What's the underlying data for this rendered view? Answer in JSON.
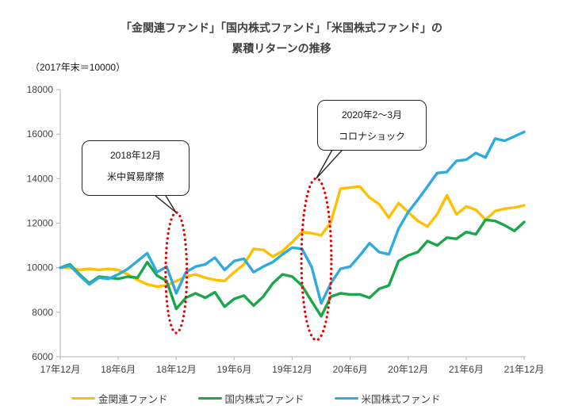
{
  "title": {
    "line1": "「金関連ファンド」「国内株式ファンド」「米国株式ファンド」の",
    "line2": "累積リターンの推移"
  },
  "axis_note": "（2017年末＝10000）",
  "annotations": [
    {
      "id": "trade-friction",
      "line1": "2018年12月",
      "line2": "米中貿易摩擦"
    },
    {
      "id": "corona-shock",
      "line1": "2020年2～3月",
      "line2": "コロナショック"
    }
  ],
  "colors": {
    "gold": "#FFC000",
    "domestic": "#1aa74a",
    "us": "#2faade",
    "highlight": "#e60000",
    "axis": "#bfbfbf",
    "label": "#3f3f3f"
  },
  "chart_data": {
    "type": "line",
    "title": "「金関連ファンド」「国内株式ファンド」「米国株式ファンド」の累積リターンの推移",
    "subtitle": "（2017年末＝10000）",
    "ylabel": "",
    "xlabel": "",
    "ylim": [
      6000,
      18000
    ],
    "ytick_step": 2000,
    "grid": false,
    "legend_position": "bottom",
    "x_tick_labels": [
      "17年12月",
      "18年6月",
      "18年12月",
      "19年6月",
      "19年12月",
      "20年6月",
      "20年12月",
      "21年6月",
      "21年12月"
    ],
    "categories": [
      "17年12月",
      "18年1月",
      "18年2月",
      "18年3月",
      "18年4月",
      "18年5月",
      "18年6月",
      "18年7月",
      "18年8月",
      "18年9月",
      "18年10月",
      "18年11月",
      "18年12月",
      "19年1月",
      "19年2月",
      "19年3月",
      "19年4月",
      "19年5月",
      "19年6月",
      "19年7月",
      "19年8月",
      "19年9月",
      "19年10月",
      "19年11月",
      "19年12月",
      "20年1月",
      "20年2月",
      "20年3月",
      "20年4月",
      "20年5月",
      "20年6月",
      "20年7月",
      "20年8月",
      "20年9月",
      "20年10月",
      "20年11月",
      "20年12月",
      "21年1月",
      "21年2月",
      "21年3月",
      "21年4月",
      "21年5月",
      "21年6月",
      "21年7月",
      "21年8月",
      "21年9月",
      "21年10月",
      "21年11月",
      "21年12月"
    ],
    "series": [
      {
        "name": "金関連ファンド",
        "color": "#FFC000",
        "values": [
          10000,
          10000,
          9900,
          9950,
          9900,
          9950,
          9900,
          9700,
          9450,
          9250,
          9150,
          9200,
          9400,
          9600,
          9700,
          9550,
          9450,
          9400,
          9800,
          10150,
          10850,
          10800,
          10500,
          10750,
          11150,
          11600,
          11550,
          11450,
          12050,
          13550,
          13600,
          13650,
          13150,
          12850,
          12250,
          12900,
          12500,
          12100,
          11850,
          12400,
          13250,
          12400,
          12750,
          12600,
          12150,
          12550,
          12650,
          12700,
          12800
        ]
      },
      {
        "name": "国内株式ファンド",
        "color": "#1aa74a",
        "values": [
          10000,
          10150,
          9700,
          9300,
          9600,
          9550,
          9500,
          9600,
          9550,
          10250,
          9650,
          9400,
          8150,
          8650,
          8850,
          8650,
          8900,
          8250,
          8600,
          8750,
          8300,
          8700,
          9300,
          9700,
          9600,
          9200,
          8500,
          7820,
          8700,
          8850,
          8800,
          8800,
          8650,
          9050,
          9200,
          10300,
          10550,
          10700,
          11200,
          11000,
          11350,
          11300,
          11600,
          11500,
          12150,
          12100,
          11900,
          11650,
          12050
        ]
      },
      {
        "name": "米国株式ファンド",
        "color": "#2faade",
        "values": [
          10000,
          10100,
          9650,
          9250,
          9550,
          9500,
          9700,
          9950,
          10300,
          10650,
          9800,
          10050,
          8850,
          9800,
          10050,
          10150,
          10450,
          9900,
          10300,
          10400,
          9800,
          10050,
          10250,
          10600,
          10900,
          10850,
          10050,
          8400,
          9300,
          9950,
          10050,
          10550,
          11100,
          10700,
          10600,
          11750,
          12500,
          13050,
          13650,
          14250,
          14300,
          14800,
          14850,
          15150,
          14950,
          15800,
          15700,
          15900,
          16100
        ]
      }
    ],
    "highlight_ellipses": [
      {
        "label": "2018年12月 米中貿易摩擦",
        "month_center": 12,
        "month_radius": 1.1,
        "value_range": [
          7070,
          12480
        ]
      },
      {
        "label": "2020年2～3月 コロナショック",
        "month_center": 26.5,
        "month_radius": 1.55,
        "value_range": [
          6750,
          14010
        ]
      }
    ]
  },
  "legend": [
    {
      "label": "金関連ファンド",
      "color": "#FFC000"
    },
    {
      "label": "国内株式ファンド",
      "color": "#1aa74a"
    },
    {
      "label": "米国株式ファンド",
      "color": "#2faade"
    }
  ]
}
